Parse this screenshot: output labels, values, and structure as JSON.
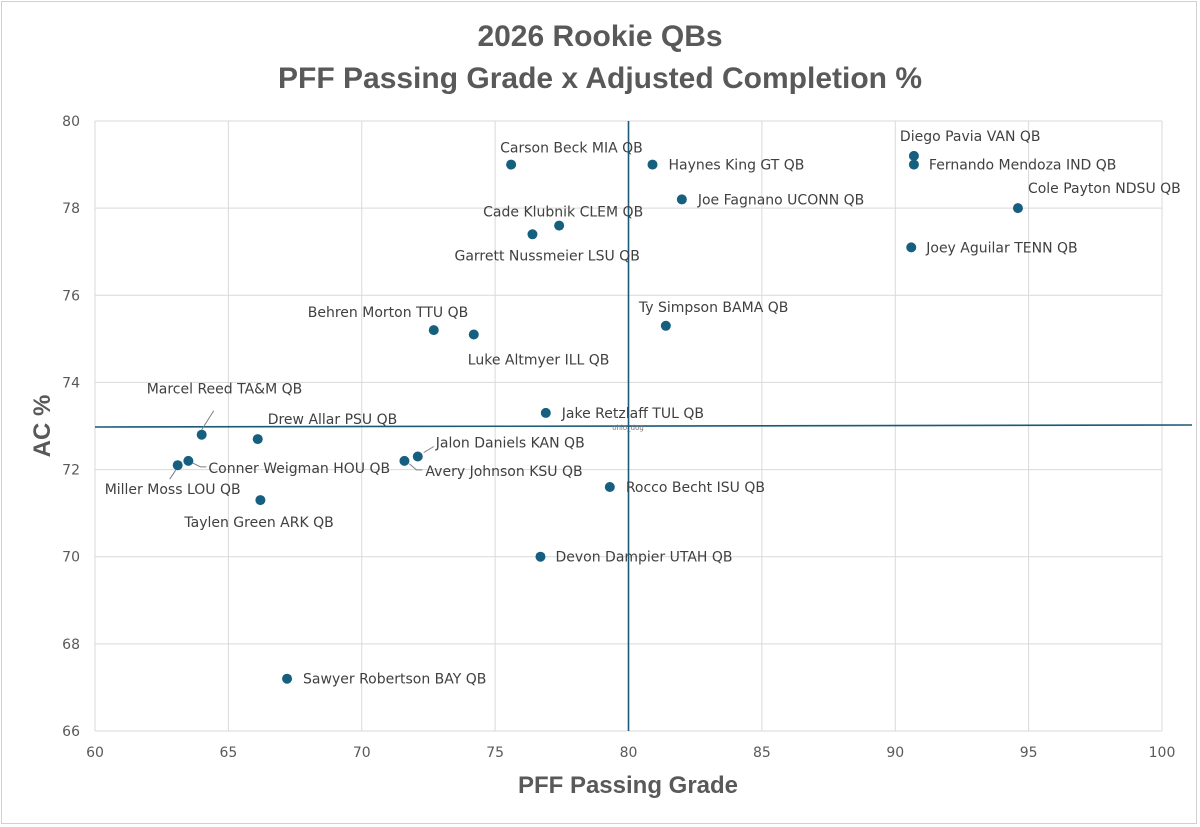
{
  "chart_data": {
    "type": "scatter",
    "title": [
      "2026 Rookie QBs",
      "PFF Passing Grade x Adjusted Completion %"
    ],
    "xlabel": "PFF Passing Grade",
    "ylabel": "AC %",
    "xlim": [
      60,
      100
    ],
    "ylim": [
      66,
      80
    ],
    "xticks": [
      60,
      65,
      70,
      75,
      80,
      85,
      90,
      95,
      100
    ],
    "yticks": [
      66,
      68,
      70,
      72,
      74,
      76,
      78,
      80
    ],
    "grid": true,
    "reference_lines": {
      "x": 80,
      "y": 73
    },
    "watermark": "ohio_dog",
    "marker_color": "#175f7e",
    "points": [
      {
        "name": "Diego Pavia VAN QB",
        "x": 90.7,
        "y": 79.2
      },
      {
        "name": "Fernando Mendoza IND QB",
        "x": 90.7,
        "y": 79.0
      },
      {
        "name": "Cole Payton NDSU QB",
        "x": 94.6,
        "y": 78.0
      },
      {
        "name": "Joey Aguilar TENN QB",
        "x": 90.6,
        "y": 77.1
      },
      {
        "name": "Carson Beck MIA QB",
        "x": 75.6,
        "y": 79.0
      },
      {
        "name": "Haynes King GT QB",
        "x": 80.9,
        "y": 79.0
      },
      {
        "name": "Joe Fagnano UCONN QB",
        "x": 82.0,
        "y": 78.2
      },
      {
        "name": "Cade Klubnik CLEM QB",
        "x": 77.4,
        "y": 77.6
      },
      {
        "name": "Garrett Nussmeier LSU QB",
        "x": 76.4,
        "y": 77.4
      },
      {
        "name": "Ty Simpson BAMA QB",
        "x": 81.4,
        "y": 75.3
      },
      {
        "name": "Behren Morton TTU QB",
        "x": 72.7,
        "y": 75.2
      },
      {
        "name": "Luke Altmyer ILL QB",
        "x": 74.2,
        "y": 75.1
      },
      {
        "name": "Jake Retzlaff TUL QB",
        "x": 76.9,
        "y": 73.3
      },
      {
        "name": "Marcel Reed TA&M QB",
        "x": 64.0,
        "y": 72.8
      },
      {
        "name": "Drew Allar PSU QB",
        "x": 66.1,
        "y": 72.7
      },
      {
        "name": "Jalon Daniels KAN QB",
        "x": 72.1,
        "y": 72.3
      },
      {
        "name": "Avery Johnson KSU QB",
        "x": 71.6,
        "y": 72.2
      },
      {
        "name": "Conner Weigman HOU QB",
        "x": 63.5,
        "y": 72.2
      },
      {
        "name": "Miller Moss LOU QB",
        "x": 63.1,
        "y": 72.1
      },
      {
        "name": "Rocco Becht ISU QB",
        "x": 79.3,
        "y": 71.6
      },
      {
        "name": "Taylen Green ARK QB",
        "x": 66.2,
        "y": 71.3
      },
      {
        "name": "Devon Dampier UTAH QB",
        "x": 76.7,
        "y": 70.0
      },
      {
        "name": "Sawyer Robertson BAY QB",
        "x": 67.2,
        "y": 67.2
      }
    ]
  }
}
